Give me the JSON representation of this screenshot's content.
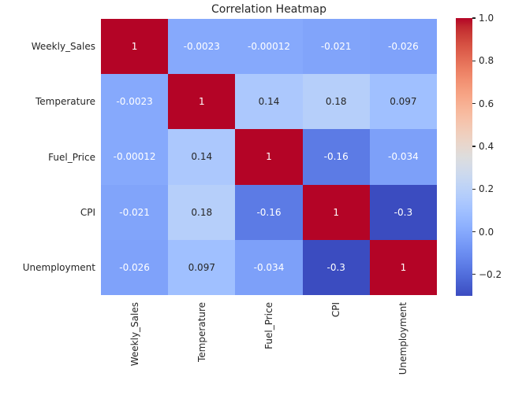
{
  "title": "Correlation Heatmap",
  "colors": {
    "text": "#262626",
    "background": "#ffffff",
    "diagonal_red": "#b40426",
    "min_blue": "#3b4cc0"
  },
  "chart_data": {
    "type": "heatmap",
    "title": "Correlation Heatmap",
    "categories": [
      "Weekly_Sales",
      "Temperature",
      "Fuel_Price",
      "CPI",
      "Unemployment"
    ],
    "matrix": [
      [
        1,
        -0.0023,
        -0.00012,
        -0.021,
        -0.026
      ],
      [
        -0.0023,
        1,
        0.14,
        0.18,
        0.097
      ],
      [
        -0.00012,
        0.14,
        1,
        -0.16,
        -0.034
      ],
      [
        -0.021,
        0.18,
        -0.16,
        1,
        -0.3
      ],
      [
        -0.026,
        0.097,
        -0.034,
        -0.3,
        1
      ]
    ],
    "annotations": [
      [
        "1",
        "-0.0023",
        "-0.00012",
        "-0.021",
        "-0.026"
      ],
      [
        "-0.0023",
        "1",
        "0.14",
        "0.18",
        "0.097"
      ],
      [
        "-0.00012",
        "0.14",
        "1",
        "-0.16",
        "-0.034"
      ],
      [
        "-0.021",
        "0.18",
        "-0.16",
        "1",
        "-0.3"
      ],
      [
        "-0.026",
        "0.097",
        "-0.034",
        "-0.3",
        "1"
      ]
    ],
    "colormap": "coolwarm",
    "vmin": -0.3,
    "vmax": 1.0,
    "colorbar": {
      "position": "right",
      "tick_labels": [
        "1.0",
        "0.8",
        "0.6",
        "0.4",
        "0.2",
        "0.0",
        "−0.2"
      ],
      "tick_values": [
        1.0,
        0.8,
        0.6,
        0.4,
        0.2,
        0.0,
        -0.2
      ]
    },
    "grid": false,
    "legend_position": "right-colorbar"
  }
}
